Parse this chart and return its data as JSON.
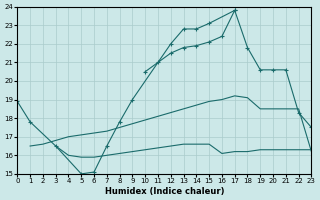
{
  "xlabel": "Humidex (Indice chaleur)",
  "xlim": [
    0,
    23
  ],
  "ylim": [
    15,
    24
  ],
  "xticks": [
    0,
    1,
    2,
    3,
    4,
    5,
    6,
    7,
    8,
    9,
    10,
    11,
    12,
    13,
    14,
    15,
    16,
    17,
    18,
    19,
    20,
    21,
    22,
    23
  ],
  "yticks": [
    15,
    16,
    17,
    18,
    19,
    20,
    21,
    22,
    23,
    24
  ],
  "bg_color": "#cce8e8",
  "grid_color": "#aacccc",
  "line_color": "#1a6b6b",
  "line1_x": [
    0,
    1,
    3,
    5,
    6,
    7,
    8,
    9,
    12,
    13,
    14,
    15,
    17
  ],
  "line1_y": [
    18.9,
    17.8,
    16.5,
    15.0,
    15.1,
    16.5,
    17.8,
    19.0,
    22.0,
    22.8,
    22.8,
    23.1,
    23.8
  ],
  "line2_x": [
    10,
    11,
    12,
    13,
    14,
    15,
    16,
    17,
    18,
    19,
    20,
    21,
    22,
    23
  ],
  "line2_y": [
    20.5,
    21.0,
    21.5,
    21.8,
    21.9,
    22.1,
    22.4,
    23.8,
    21.8,
    20.6,
    20.6,
    20.6,
    18.3,
    17.5
  ],
  "line3_x": [
    1,
    2,
    3,
    4,
    5,
    6,
    7,
    8,
    9,
    10,
    11,
    12,
    13,
    14,
    15,
    16,
    17,
    18,
    19,
    20,
    21,
    22,
    23
  ],
  "line3_y": [
    16.5,
    16.6,
    16.8,
    17.0,
    17.1,
    17.2,
    17.3,
    17.5,
    17.7,
    17.9,
    18.1,
    18.3,
    18.5,
    18.7,
    18.9,
    19.0,
    19.2,
    19.1,
    18.5,
    18.5,
    18.5,
    18.5,
    16.2
  ],
  "line4_x": [
    3,
    4,
    5,
    6,
    7,
    8,
    9,
    10,
    11,
    12,
    13,
    14,
    15,
    16,
    17,
    18,
    19,
    20,
    21,
    22,
    23
  ],
  "line4_y": [
    16.5,
    16.0,
    15.9,
    15.9,
    16.0,
    16.1,
    16.2,
    16.3,
    16.4,
    16.5,
    16.6,
    16.6,
    16.6,
    16.1,
    16.2,
    16.2,
    16.3,
    16.3,
    16.3,
    16.3,
    16.3
  ]
}
